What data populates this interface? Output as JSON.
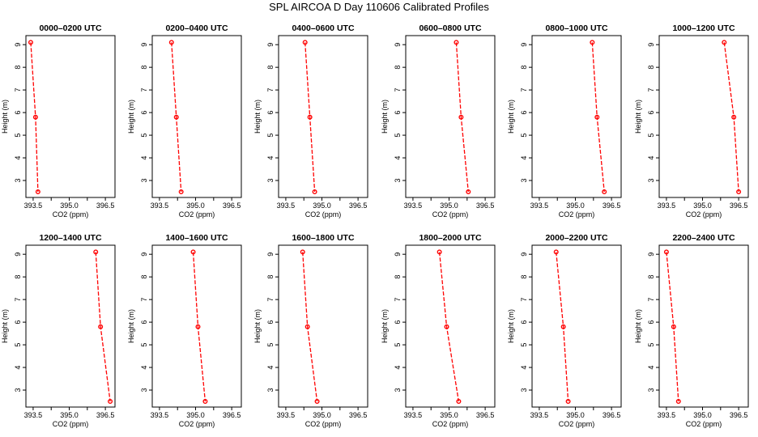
{
  "page": {
    "title": "SPL AIRCOA D  Day 110606  Calibrated Profiles"
  },
  "chart_data": [
    {
      "type": "line",
      "title": "0000–0200 UTC",
      "xlabel": "CO2 (ppm)",
      "ylabel": "Height (m)",
      "xlim": [
        393.2,
        396.9
      ],
      "ylim": [
        2.25,
        9.4
      ],
      "xticks": [
        "393.5",
        "395.0",
        "396.5"
      ],
      "yticks": [
        "3",
        "4",
        "5",
        "6",
        "7",
        "8",
        "9"
      ],
      "grid": false,
      "series": [
        {
          "color": "#ff0000",
          "x": [
            393.4,
            393.6,
            393.7
          ],
          "y": [
            9.1,
            5.8,
            2.5
          ]
        }
      ]
    },
    {
      "type": "line",
      "title": "0200–0400 UTC",
      "xlabel": "CO2 (ppm)",
      "ylabel": "Height (m)",
      "xlim": [
        393.2,
        396.9
      ],
      "ylim": [
        2.25,
        9.4
      ],
      "xticks": [
        "393.5",
        "395.0",
        "396.5"
      ],
      "yticks": [
        "3",
        "4",
        "5",
        "6",
        "7",
        "8",
        "9"
      ],
      "grid": false,
      "series": [
        {
          "color": "#ff0000",
          "x": [
            394.0,
            394.2,
            394.4
          ],
          "y": [
            9.1,
            5.8,
            2.5
          ]
        }
      ]
    },
    {
      "type": "line",
      "title": "0400–0600 UTC",
      "xlabel": "CO2 (ppm)",
      "ylabel": "Height (m)",
      "xlim": [
        393.2,
        396.9
      ],
      "ylim": [
        2.25,
        9.4
      ],
      "xticks": [
        "393.5",
        "395.0",
        "396.5"
      ],
      "yticks": [
        "3",
        "4",
        "5",
        "6",
        "7",
        "8",
        "9"
      ],
      "grid": false,
      "series": [
        {
          "color": "#ff0000",
          "x": [
            394.3,
            394.5,
            394.7
          ],
          "y": [
            9.1,
            5.8,
            2.5
          ]
        }
      ]
    },
    {
      "type": "line",
      "title": "0600–0800 UTC",
      "xlabel": "CO2 (ppm)",
      "ylabel": "Height (m)",
      "xlim": [
        393.2,
        396.9
      ],
      "ylim": [
        2.25,
        9.4
      ],
      "xticks": [
        "393.5",
        "395.0",
        "396.5"
      ],
      "yticks": [
        "3",
        "4",
        "5",
        "6",
        "7",
        "8",
        "9"
      ],
      "grid": false,
      "series": [
        {
          "color": "#ff0000",
          "x": [
            395.3,
            395.5,
            395.8
          ],
          "y": [
            9.1,
            5.8,
            2.5
          ]
        }
      ]
    },
    {
      "type": "line",
      "title": "0800–1000 UTC",
      "xlabel": "CO2 (ppm)",
      "ylabel": "Height (m)",
      "xlim": [
        393.2,
        396.9
      ],
      "ylim": [
        2.25,
        9.4
      ],
      "xticks": [
        "393.5",
        "395.0",
        "396.5"
      ],
      "yticks": [
        "3",
        "4",
        "5",
        "6",
        "7",
        "8",
        "9"
      ],
      "grid": false,
      "series": [
        {
          "color": "#ff0000",
          "x": [
            395.7,
            395.9,
            396.2
          ],
          "y": [
            9.1,
            5.8,
            2.5
          ]
        }
      ]
    },
    {
      "type": "line",
      "title": "1000–1200 UTC",
      "xlabel": "CO2 (ppm)",
      "ylabel": "Height (m)",
      "xlim": [
        393.2,
        396.9
      ],
      "ylim": [
        2.25,
        9.4
      ],
      "xticks": [
        "393.5",
        "395.0",
        "396.5"
      ],
      "yticks": [
        "3",
        "4",
        "5",
        "6",
        "7",
        "8",
        "9"
      ],
      "grid": false,
      "series": [
        {
          "color": "#ff0000",
          "x": [
            395.9,
            396.3,
            396.5
          ],
          "y": [
            9.1,
            5.8,
            2.5
          ]
        }
      ]
    },
    {
      "type": "line",
      "title": "1200–1400 UTC",
      "xlabel": "CO2 (ppm)",
      "ylabel": "Height (m)",
      "xlim": [
        393.2,
        396.9
      ],
      "ylim": [
        2.25,
        9.4
      ],
      "xticks": [
        "393.5",
        "395.0",
        "396.5"
      ],
      "yticks": [
        "3",
        "4",
        "5",
        "6",
        "7",
        "8",
        "9"
      ],
      "grid": false,
      "series": [
        {
          "color": "#ff0000",
          "x": [
            396.1,
            396.3,
            396.7
          ],
          "y": [
            9.1,
            5.8,
            2.5
          ]
        }
      ]
    },
    {
      "type": "line",
      "title": "1400–1600 UTC",
      "xlabel": "CO2 (ppm)",
      "ylabel": "Height (m)",
      "xlim": [
        393.2,
        396.9
      ],
      "ylim": [
        2.25,
        9.4
      ],
      "xticks": [
        "393.5",
        "395.0",
        "396.5"
      ],
      "yticks": [
        "3",
        "4",
        "5",
        "6",
        "7",
        "8",
        "9"
      ],
      "grid": false,
      "series": [
        {
          "color": "#ff0000",
          "x": [
            394.9,
            395.1,
            395.4
          ],
          "y": [
            9.1,
            5.8,
            2.5
          ]
        }
      ]
    },
    {
      "type": "line",
      "title": "1600–1800 UTC",
      "xlabel": "CO2 (ppm)",
      "ylabel": "Height (m)",
      "xlim": [
        393.2,
        396.9
      ],
      "ylim": [
        2.25,
        9.4
      ],
      "xticks": [
        "393.5",
        "395.0",
        "396.5"
      ],
      "yticks": [
        "3",
        "4",
        "5",
        "6",
        "7",
        "8",
        "9"
      ],
      "grid": false,
      "series": [
        {
          "color": "#ff0000",
          "x": [
            394.2,
            394.4,
            394.8
          ],
          "y": [
            9.1,
            5.8,
            2.5
          ]
        }
      ]
    },
    {
      "type": "line",
      "title": "1800–2000 UTC",
      "xlabel": "CO2 (ppm)",
      "ylabel": "Height (m)",
      "xlim": [
        393.2,
        396.9
      ],
      "ylim": [
        2.25,
        9.4
      ],
      "xticks": [
        "393.5",
        "395.0",
        "396.5"
      ],
      "yticks": [
        "3",
        "4",
        "5",
        "6",
        "7",
        "8",
        "9"
      ],
      "grid": false,
      "series": [
        {
          "color": "#ff0000",
          "x": [
            394.6,
            394.9,
            395.4
          ],
          "y": [
            9.1,
            5.8,
            2.5
          ]
        }
      ]
    },
    {
      "type": "line",
      "title": "2000–2200 UTC",
      "xlabel": "CO2 (ppm)",
      "ylabel": "Height (m)",
      "xlim": [
        393.2,
        396.9
      ],
      "ylim": [
        2.25,
        9.4
      ],
      "xticks": [
        "393.5",
        "395.0",
        "396.5"
      ],
      "yticks": [
        "3",
        "4",
        "5",
        "6",
        "7",
        "8",
        "9"
      ],
      "grid": false,
      "series": [
        {
          "color": "#ff0000",
          "x": [
            394.2,
            394.5,
            394.7
          ],
          "y": [
            9.1,
            5.8,
            2.5
          ]
        }
      ]
    },
    {
      "type": "line",
      "title": "2200–2400 UTC",
      "xlabel": "CO2 (ppm)",
      "ylabel": "Height (m)",
      "xlim": [
        393.2,
        396.9
      ],
      "ylim": [
        2.25,
        9.4
      ],
      "xticks": [
        "393.5",
        "395.0",
        "396.5"
      ],
      "yticks": [
        "3",
        "4",
        "5",
        "6",
        "7",
        "8",
        "9"
      ],
      "grid": false,
      "series": [
        {
          "color": "#ff0000",
          "x": [
            393.5,
            393.8,
            394.0
          ],
          "y": [
            9.1,
            5.8,
            2.5
          ]
        }
      ]
    }
  ]
}
